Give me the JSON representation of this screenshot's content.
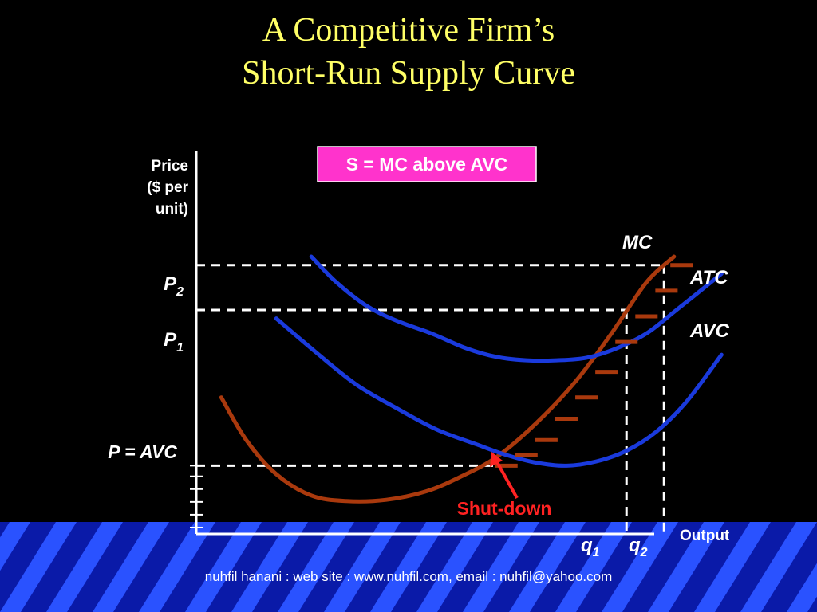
{
  "slide": {
    "title_line1": "A Competitive Firm’s",
    "title_line2": "Short-Run Supply Curve",
    "footer": "nuhfil hanani : web site : www.nuhfil.com, email : nuhfil@yahoo.com"
  },
  "colors": {
    "background": "#000000",
    "title": "#ffff66",
    "avc_atc": "#1a3adc",
    "mc": "#a9390d",
    "callout_box": "#ff33cc",
    "shutdown": "#ff2222",
    "stripe_dark": "#0a1aa8",
    "stripe_bright": "#2a52ff"
  },
  "chart_data": {
    "type": "line",
    "ylabel": [
      "Price",
      "($ per",
      "unit)"
    ],
    "xlabel": "Output",
    "callout": "S = MC above AVC",
    "annotation": "Shut-down",
    "y_ticks": [
      {
        "label": "P",
        "sub": "2",
        "italic": true,
        "value": 6.3
      },
      {
        "label": "P",
        "sub": "1",
        "italic": true,
        "value": 5.25
      },
      {
        "label": "P = AVC",
        "sub": "",
        "italic": true,
        "value": 1.6
      }
    ],
    "x_ticks": [
      {
        "label": "q",
        "sub": "1",
        "value": 8.6
      },
      {
        "label": "q",
        "sub": "2",
        "value": 9.35
      }
    ],
    "xlim": [
      0,
      10
    ],
    "ylim": [
      0,
      8.5
    ],
    "series": [
      {
        "name": "MC",
        "color_key": "mc",
        "x": [
          0.5,
          1.0,
          1.6,
          2.3,
          3.0,
          3.8,
          4.6,
          5.3,
          6.0,
          6.8,
          7.6,
          8.3,
          9.0,
          9.55
        ],
        "y": [
          3.2,
          2.2,
          1.4,
          0.9,
          0.77,
          0.8,
          1.0,
          1.35,
          1.8,
          2.6,
          3.6,
          4.7,
          5.9,
          6.5
        ]
      },
      {
        "name": "ATC",
        "color_key": "avc_atc",
        "x": [
          2.3,
          2.8,
          3.4,
          4.0,
          4.7,
          5.4,
          6.0,
          6.6,
          7.2,
          7.8,
          8.4,
          9.0,
          9.6,
          10.5
        ],
        "y": [
          6.5,
          5.9,
          5.35,
          5.0,
          4.7,
          4.35,
          4.15,
          4.07,
          4.07,
          4.13,
          4.35,
          4.7,
          5.25,
          6.1
        ]
      },
      {
        "name": "AVC",
        "color_key": "avc_atc",
        "x": [
          1.6,
          2.4,
          3.2,
          4.0,
          4.8,
          5.6,
          6.2,
          6.8,
          7.4,
          8.0,
          8.6,
          9.2,
          9.8,
          10.5
        ],
        "y": [
          5.05,
          4.25,
          3.5,
          2.95,
          2.45,
          2.1,
          1.85,
          1.67,
          1.6,
          1.7,
          1.95,
          2.4,
          3.1,
          4.2
        ]
      }
    ],
    "supply_hatch": {
      "x": [
        6.2,
        6.6,
        7.0,
        7.4,
        7.8,
        8.2,
        8.6,
        9.0,
        9.4,
        9.7
      ],
      "y": [
        1.6,
        1.85,
        2.2,
        2.7,
        3.2,
        3.8,
        4.5,
        5.1,
        5.7,
        6.3
      ]
    },
    "axis_hatch": {
      "y": [
        0.15,
        0.45,
        0.75,
        1.05,
        1.35,
        1.6
      ]
    },
    "grid": false,
    "legend": "curve labels placed beside each curve"
  }
}
